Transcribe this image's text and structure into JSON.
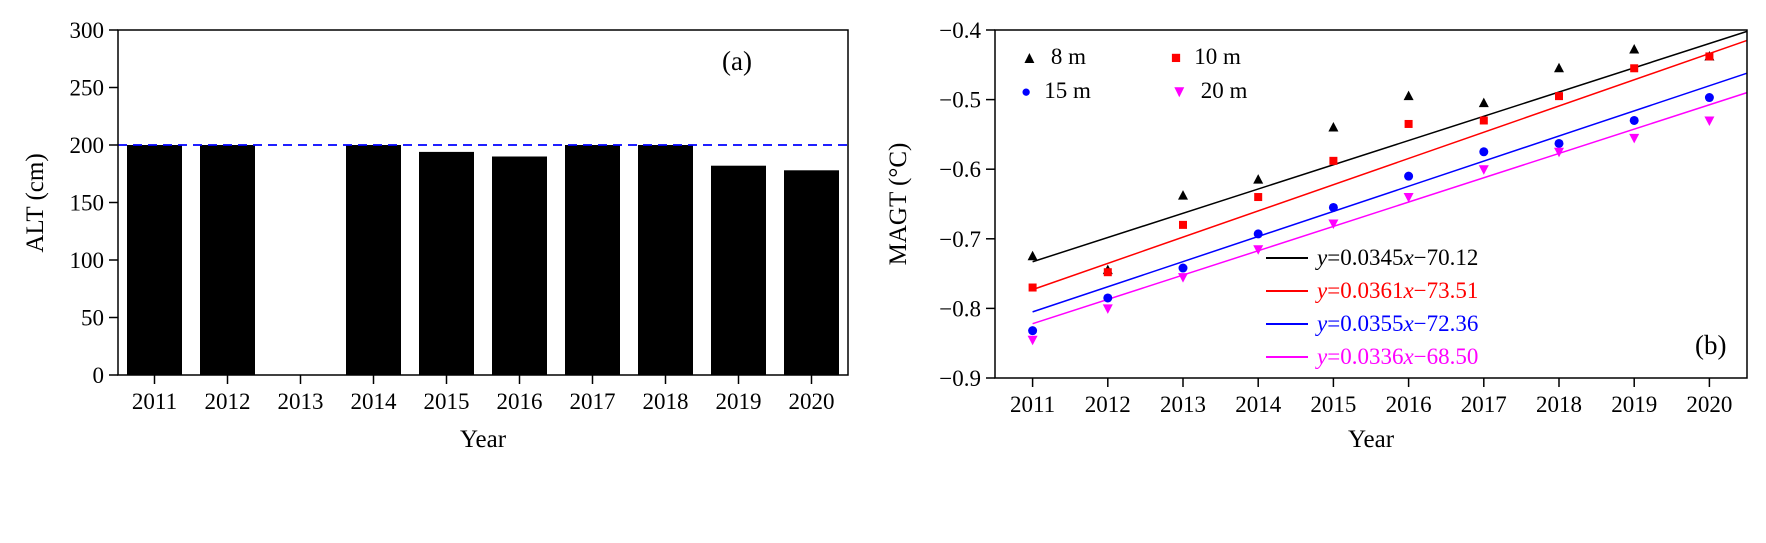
{
  "figure": {
    "background": "#ffffff"
  },
  "chart_data": [
    {
      "type": "bar",
      "panel_label": "(a)",
      "xlabel": "Year",
      "ylabel": "ALT (cm)",
      "categories": [
        "2011",
        "2012",
        "2013",
        "2014",
        "2015",
        "2016",
        "2017",
        "2018",
        "2019",
        "2020"
      ],
      "values": [
        200,
        200,
        null,
        200,
        194,
        190,
        200,
        200,
        182,
        178
      ],
      "ylim": [
        0,
        300
      ],
      "yticks": [
        0,
        50,
        100,
        150,
        200,
        250,
        300
      ],
      "bar_color": "#000000",
      "grid": "off",
      "reference_line": {
        "value": 200,
        "color": "#0000ff",
        "style": "dashed"
      }
    },
    {
      "type": "scatter",
      "panel_label": "(b)",
      "xlabel": "Year",
      "ylabel": "MAGT (°C)",
      "x": [
        2011,
        2012,
        2013,
        2014,
        2015,
        2016,
        2017,
        2018,
        2019,
        2020
      ],
      "xlim": [
        2010.5,
        2020.5
      ],
      "ylim": [
        -0.9,
        -0.4
      ],
      "yticks": [
        -0.9,
        -0.8,
        -0.7,
        -0.6,
        -0.5,
        -0.4
      ],
      "grid": "off",
      "legend_position": "top-left",
      "series": [
        {
          "name": "8 m",
          "color": "#000000",
          "marker": "triangle-up",
          "values": [
            -0.725,
            -0.745,
            -0.638,
            -0.615,
            -0.54,
            -0.495,
            -0.505,
            -0.455,
            -0.428,
            -0.438
          ],
          "fit": {
            "label": "y=0.0345x-70.12",
            "x": [
              2011,
              2020.5
            ],
            "y": [
              -0.733,
              -0.402
            ]
          }
        },
        {
          "name": "10 m",
          "color": "#ff0000",
          "marker": "square",
          "values": [
            -0.77,
            -0.748,
            -0.68,
            -0.64,
            -0.588,
            -0.535,
            -0.53,
            -0.495,
            -0.455,
            -0.438
          ],
          "fit": {
            "label": "y=0.0361x-73.51",
            "x": [
              2011,
              2020.5
            ],
            "y": [
              -0.773,
              -0.415
            ]
          }
        },
        {
          "name": "15 m",
          "color": "#0000ff",
          "marker": "circle",
          "values": [
            -0.832,
            -0.785,
            -0.742,
            -0.693,
            -0.655,
            -0.61,
            -0.575,
            -0.563,
            -0.53,
            -0.497
          ],
          "fit": {
            "label": "y=0.0355x-72.36",
            "x": [
              2011,
              2020.5
            ],
            "y": [
              -0.805,
              -0.462
            ]
          }
        },
        {
          "name": "20 m",
          "color": "#ff00ff",
          "marker": "triangle-down",
          "values": [
            -0.845,
            -0.8,
            -0.755,
            -0.715,
            -0.678,
            -0.64,
            -0.6,
            -0.575,
            -0.555,
            -0.53
          ],
          "fit": {
            "label": "y=0.0336x-68.50",
            "x": [
              2011,
              2020.5
            ],
            "y": [
              -0.822,
              -0.49
            ]
          }
        }
      ]
    }
  ]
}
